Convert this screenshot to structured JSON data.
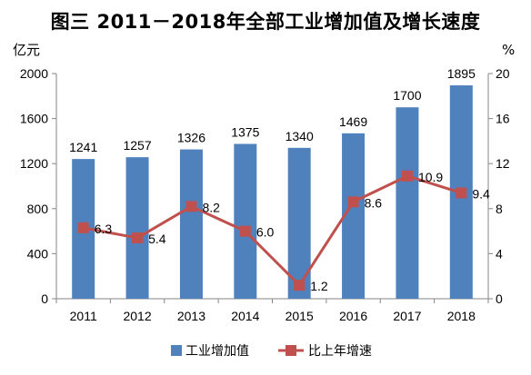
{
  "chart_data": {
    "type": "bar+line",
    "title": "图三   2011－2018年全部工业增加值及增长速度",
    "categories": [
      "2011",
      "2012",
      "2013",
      "2014",
      "2015",
      "2016",
      "2017",
      "2018"
    ],
    "series": [
      {
        "name": "工业增加值",
        "type": "bar",
        "axis": "left",
        "values": [
          1241,
          1257,
          1326,
          1375,
          1340,
          1469,
          1700,
          1895
        ],
        "color": "#4f81bd"
      },
      {
        "name": "比上年增速",
        "type": "line",
        "axis": "right",
        "values": [
          6.3,
          5.4,
          8.2,
          6.0,
          1.2,
          8.6,
          10.9,
          9.4
        ],
        "color": "#c0504d"
      }
    ],
    "y_left": {
      "unit": "亿元",
      "ylim": [
        0,
        2000
      ],
      "ticks": [
        0,
        400,
        800,
        1200,
        1600,
        2000
      ]
    },
    "y_right": {
      "unit": "%",
      "ylim": [
        0,
        20
      ],
      "ticks": [
        0,
        4,
        8,
        12,
        16,
        20
      ]
    },
    "legend_position": "bottom",
    "grid": false
  }
}
